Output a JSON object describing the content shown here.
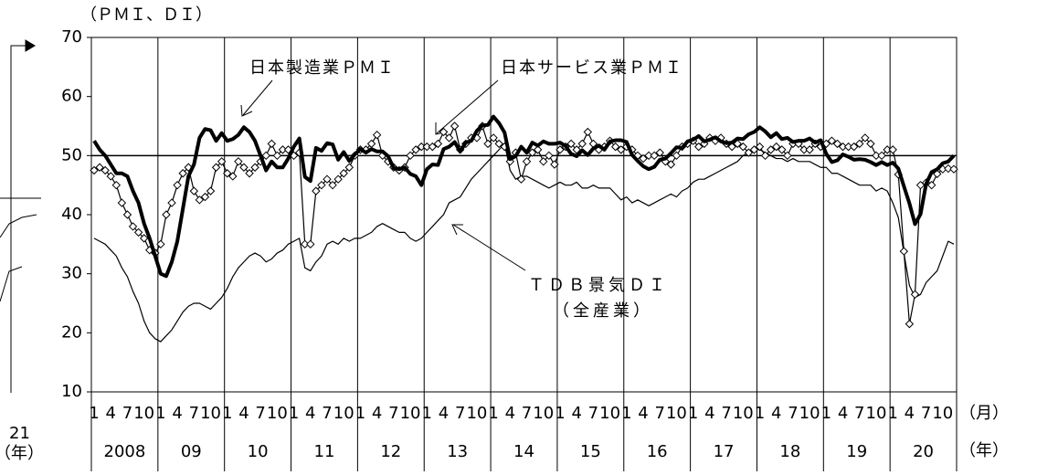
{
  "chart_data": {
    "type": "line",
    "y_axis_label": "（ＰＭＩ、ＤＩ）",
    "month_unit": "（月）",
    "year_unit": "（年）",
    "left_year": "21",
    "left_year_unit": "（年）",
    "annotations": [
      "日本製造業ＰＭＩ",
      "日本サービス業ＰＭＩ",
      "ＴＤＢ景気ＤＩ",
      "（全産業）"
    ],
    "categories": [
      1,
      null,
      null,
      4,
      null,
      null,
      7,
      null,
      null,
      10,
      null,
      null,
      1,
      null,
      null,
      4,
      null,
      null,
      7,
      null,
      null,
      10,
      null,
      null,
      1,
      null,
      null,
      4,
      null,
      null,
      7,
      null,
      null,
      10,
      null,
      null,
      1,
      null,
      null,
      4,
      null,
      null,
      7,
      null,
      null,
      10,
      null,
      null,
      1,
      null,
      null,
      4,
      null,
      null,
      7,
      null,
      null,
      10,
      null,
      null,
      1,
      null,
      null,
      4,
      null,
      null,
      7,
      null,
      null,
      10,
      null,
      null,
      1,
      null,
      null,
      4,
      null,
      null,
      7,
      null,
      null,
      10,
      null,
      null,
      1,
      null,
      null,
      4,
      null,
      null,
      7,
      null,
      null,
      10,
      null,
      null,
      1,
      null,
      null,
      4,
      null,
      null,
      7,
      null,
      null,
      10,
      null,
      null,
      1,
      null,
      null,
      4,
      null,
      null,
      7,
      null,
      null,
      10,
      null,
      null,
      1,
      null,
      null,
      4,
      null,
      null,
      7,
      null,
      null,
      10,
      null,
      null,
      1,
      null,
      null,
      4,
      null,
      null,
      7,
      null,
      null,
      10,
      null,
      null,
      1,
      null,
      null,
      4,
      null,
      null,
      7,
      null,
      null,
      10,
      null,
      null
    ],
    "years": [
      "2008",
      "09",
      "10",
      "11",
      "12",
      "13",
      "14",
      "15",
      "16",
      "17",
      "18",
      "19",
      "20"
    ],
    "ylim": [
      10,
      70
    ],
    "yticks": [
      10,
      20,
      30,
      40,
      50,
      60,
      70
    ],
    "hline": 50,
    "series": [
      {
        "name": "日本製造業ＰＭＩ",
        "color": "#000000",
        "values": [
          52.5,
          51,
          50,
          48.5,
          47,
          47,
          46.5,
          44,
          42,
          38.5,
          36,
          33,
          30,
          29.6,
          32,
          35.5,
          41,
          46.5,
          48.5,
          53,
          54.5,
          54.3,
          52.5,
          53.8,
          52.5,
          52.8,
          53.5,
          54.8,
          54,
          52.5,
          50,
          47.5,
          49,
          48,
          48,
          49.5,
          51.5,
          52.9,
          46.4,
          45.7,
          51.3,
          50.8,
          52.1,
          51.9,
          49.3,
          50.6,
          49.1,
          50.2,
          51.1,
          50.5,
          51.1,
          50.7,
          50.7,
          49.9,
          47.9,
          47.7,
          48,
          46.9,
          46.5,
          45,
          47.7,
          48.5,
          48.4,
          51.1,
          51.5,
          52.3,
          50.7,
          52.2,
          52.5,
          54.2,
          55.1,
          55.2,
          56.6,
          55.5,
          53.9,
          49.4,
          49.9,
          51.5,
          50.5,
          52.2,
          51.7,
          52.4,
          52,
          52,
          52.2,
          51.6,
          50.3,
          49.9,
          50.9,
          50.1,
          51.2,
          51.7,
          51,
          52.4,
          52.6,
          52.6,
          52.3,
          50.1,
          49.1,
          48.2,
          47.7,
          48.1,
          49.3,
          49.5,
          50.4,
          51.4,
          51.3,
          52.4,
          52.7,
          53.3,
          52.4,
          52.7,
          53.1,
          52.4,
          52.1,
          52.2,
          52.9,
          52.8,
          53.6,
          54,
          54.8,
          54.1,
          53.1,
          53.8,
          52.8,
          53,
          52.3,
          52.5,
          52.5,
          52.9,
          52.2,
          52.6,
          50.3,
          48.9,
          49.2,
          50.2,
          49.8,
          49.3,
          49.4,
          49.3,
          48.9,
          48.4,
          48.9,
          48.4,
          48.8,
          47.8,
          44.8,
          41.9,
          38.4,
          40.1,
          45.2,
          47.2,
          47.7,
          48.7,
          49,
          50
        ]
      },
      {
        "name": "日本サービス業ＰＭＩ",
        "color": "#000000",
        "marker": "diamond",
        "values": [
          47.5,
          48,
          47.5,
          46.5,
          45,
          42,
          40,
          38,
          37,
          36,
          34,
          33.5,
          35,
          40,
          42,
          45,
          47,
          48,
          44,
          42.5,
          43,
          44,
          48,
          49,
          47,
          46.5,
          49,
          48,
          47,
          48,
          49,
          50,
          52,
          50,
          51,
          51,
          50,
          50.5,
          35,
          35,
          44,
          45,
          46,
          45,
          46,
          47,
          48,
          50,
          51,
          51,
          52,
          53.5,
          50,
          49,
          48,
          47.5,
          48,
          50,
          51,
          51.5,
          51.5,
          51.5,
          52,
          54,
          53,
          55,
          51,
          52,
          53,
          53,
          55,
          52,
          53,
          52,
          51.5,
          49,
          50.5,
          46,
          49,
          50.5,
          51,
          49,
          50,
          48.5,
          51,
          51.5,
          52,
          51,
          52,
          54,
          52,
          51,
          51.5,
          52.5,
          51.5,
          51,
          51.5,
          51,
          50,
          49.5,
          50,
          50,
          50.5,
          49,
          48.5,
          50,
          51.5,
          52,
          52.5,
          51.5,
          52,
          53,
          52.5,
          53,
          52,
          51.5,
          52,
          51.5,
          50.5,
          51,
          51.5,
          50,
          51,
          51.5,
          51,
          50,
          52,
          52,
          51,
          51,
          52,
          51.5,
          52,
          52.5,
          52,
          51.5,
          51.5,
          51.5,
          52,
          53,
          52,
          50,
          50,
          51,
          51,
          46.8,
          33.8,
          21.5,
          26.5,
          45,
          45.4,
          45,
          46.9,
          47.7,
          47.8,
          47.7
        ]
      },
      {
        "name": "ＴＤＢ景気ＤＩ",
        "color": "#000000",
        "values": [
          36,
          35.5,
          35,
          34,
          33,
          31,
          29.5,
          27,
          25,
          22,
          20,
          19,
          18.5,
          19.5,
          20.5,
          22,
          23.5,
          24.5,
          25,
          25,
          24.5,
          24,
          25,
          26,
          27.5,
          29.5,
          31,
          32,
          33,
          33.5,
          33,
          32,
          32.5,
          33.5,
          34,
          35,
          35.5,
          36,
          31,
          30.5,
          32,
          33,
          35,
          35.5,
          35,
          36,
          35.5,
          36,
          36,
          36.5,
          37,
          38,
          38.5,
          38,
          37.5,
          37,
          37,
          36,
          35.5,
          36,
          37,
          38,
          39,
          40,
          42,
          42.5,
          43,
          44.5,
          46,
          47,
          48,
          49,
          50,
          51,
          52,
          47.5,
          46,
          46.5,
          46.5,
          46,
          45.5,
          45,
          44.5,
          45,
          45.5,
          45,
          45,
          45.5,
          44.5,
          44.5,
          45,
          44.5,
          44.5,
          44.5,
          43.5,
          42.5,
          43,
          42,
          42.5,
          42,
          41.5,
          42,
          42.5,
          43,
          43.5,
          43,
          44,
          44.5,
          45.5,
          46,
          46,
          46.5,
          47,
          47.5,
          48,
          48.5,
          49,
          50,
          50.5,
          51,
          51,
          50.5,
          50,
          49.5,
          49.5,
          49,
          49.5,
          49,
          49,
          49,
          48.5,
          48,
          48,
          47,
          47,
          46.5,
          46,
          45.5,
          45,
          45,
          45,
          44,
          44.5,
          44,
          42,
          39.5,
          33.5,
          28,
          26,
          26.5,
          28.5,
          29.5,
          30.5,
          33,
          35.5,
          35
        ]
      }
    ]
  }
}
